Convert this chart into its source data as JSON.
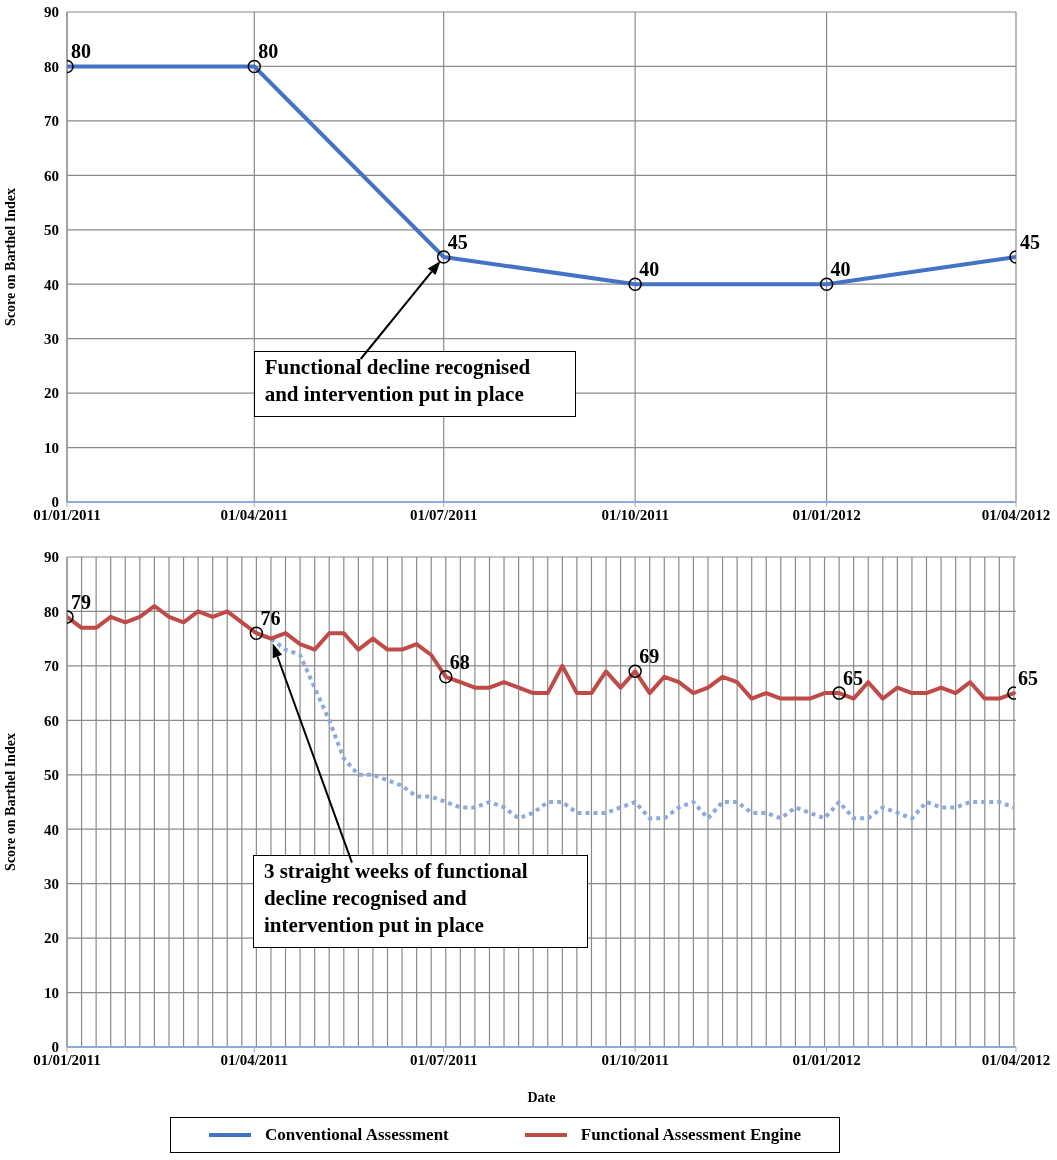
{
  "chart_data": [
    {
      "type": "line",
      "ylabel": "Score on Barthel Index",
      "x": [
        "2011-01-01",
        "2011-04-01",
        "2011-07-01",
        "2011-10-01",
        "2012-01-01",
        "2012-04-01"
      ],
      "series": [
        {
          "name": "Conventional Assessment",
          "color": "#4472c4",
          "values": [
            80,
            80,
            45,
            40,
            40,
            45
          ]
        }
      ],
      "xlim": [
        "2011-01-01",
        "2012-04-01"
      ],
      "xticks": [
        {
          "value": "2011-01-01",
          "label": "01/01/2011"
        },
        {
          "value": "2011-04-01",
          "label": "01/04/2011"
        },
        {
          "value": "2011-07-01",
          "label": "01/07/2011"
        },
        {
          "value": "2011-10-01",
          "label": "01/10/2011"
        },
        {
          "value": "2012-01-01",
          "label": "01/01/2012"
        },
        {
          "value": "2012-04-01",
          "label": "01/04/2012"
        }
      ],
      "ylim": [
        0,
        90
      ],
      "yticks": [
        0,
        10,
        20,
        30,
        40,
        50,
        60,
        70,
        80,
        90
      ],
      "grid": true,
      "marker": "circle",
      "data_labels": true,
      "annotations": [
        "Functional decline recognised and intervention put in place"
      ]
    },
    {
      "type": "line",
      "xlabel": "Date",
      "ylabel": "Score on Barthel Index",
      "x": [
        "2011-01-01",
        "2011-01-08",
        "2011-01-15",
        "2011-01-22",
        "2011-01-29",
        "2011-02-05",
        "2011-02-12",
        "2011-02-19",
        "2011-02-26",
        "2011-03-05",
        "2011-03-12",
        "2011-03-19",
        "2011-03-26",
        "2011-04-02",
        "2011-04-09",
        "2011-04-16",
        "2011-04-23",
        "2011-04-30",
        "2011-05-07",
        "2011-05-14",
        "2011-05-21",
        "2011-05-28",
        "2011-06-04",
        "2011-06-11",
        "2011-06-18",
        "2011-06-25",
        "2011-07-02",
        "2011-07-09",
        "2011-07-16",
        "2011-07-23",
        "2011-07-30",
        "2011-08-06",
        "2011-08-13",
        "2011-08-20",
        "2011-08-27",
        "2011-09-03",
        "2011-09-10",
        "2011-09-17",
        "2011-09-24",
        "2011-10-01",
        "2011-10-08",
        "2011-10-15",
        "2011-10-22",
        "2011-10-29",
        "2011-11-05",
        "2011-11-12",
        "2011-11-19",
        "2011-11-26",
        "2011-12-03",
        "2011-12-10",
        "2011-12-17",
        "2011-12-24",
        "2011-12-31",
        "2012-01-07",
        "2012-01-14",
        "2012-01-21",
        "2012-01-28",
        "2012-02-04",
        "2012-02-11",
        "2012-02-18",
        "2012-02-25",
        "2012-03-03",
        "2012-03-10",
        "2012-03-17",
        "2012-03-24",
        "2012-03-31"
      ],
      "series": [
        {
          "color": "#8eaadb",
          "line_style": "dotted",
          "values": [
            null,
            null,
            null,
            null,
            null,
            null,
            null,
            null,
            null,
            null,
            null,
            null,
            null,
            76,
            75,
            73,
            72,
            66,
            60,
            53,
            50,
            50,
            49,
            48,
            46,
            46,
            45,
            44,
            44,
            45,
            44,
            42,
            43,
            45,
            45,
            43,
            43,
            43,
            44,
            45,
            42,
            42,
            44,
            45,
            42,
            45,
            45,
            43,
            43,
            42,
            44,
            43,
            42,
            45,
            42,
            42,
            44,
            43,
            42,
            45,
            44,
            44,
            45,
            45,
            45,
            44
          ]
        },
        {
          "name": "Functional Assessment Engine",
          "color": "#be4b48",
          "values": [
            79,
            77,
            77,
            79,
            78,
            79,
            81,
            79,
            78,
            80,
            79,
            80,
            78,
            76,
            75,
            76,
            74,
            73,
            76,
            76,
            73,
            75,
            73,
            73,
            74,
            72,
            68,
            67,
            66,
            66,
            67,
            66,
            65,
            65,
            70,
            65,
            65,
            69,
            66,
            69,
            65,
            68,
            67,
            65,
            66,
            68,
            67,
            64,
            65,
            64,
            64,
            64,
            65,
            65,
            64,
            67,
            64,
            66,
            65,
            65,
            66,
            65,
            67,
            64,
            64,
            65
          ],
          "value_labels": [
            "79",
            null,
            null,
            null,
            null,
            null,
            null,
            null,
            null,
            null,
            null,
            null,
            null,
            "76",
            null,
            null,
            null,
            null,
            null,
            null,
            null,
            null,
            null,
            null,
            null,
            null,
            "68",
            null,
            null,
            null,
            null,
            null,
            null,
            null,
            null,
            null,
            null,
            null,
            null,
            "69",
            null,
            null,
            null,
            null,
            null,
            null,
            null,
            null,
            null,
            null,
            null,
            null,
            null,
            "65",
            null,
            null,
            null,
            null,
            null,
            null,
            null,
            null,
            null,
            null,
            null,
            "65"
          ]
        }
      ],
      "xlim": [
        "2011-01-01",
        "2012-04-01"
      ],
      "xticks": [
        {
          "value": "2011-01-01",
          "label": "01/01/2011"
        },
        {
          "value": "2011-04-01",
          "label": "01/04/2011"
        },
        {
          "value": "2011-07-01",
          "label": "01/07/2011"
        },
        {
          "value": "2011-10-01",
          "label": "01/10/2011"
        },
        {
          "value": "2012-01-01",
          "label": "01/01/2012"
        },
        {
          "value": "2012-04-01",
          "label": "01/04/2012"
        }
      ],
      "ylim": [
        0,
        90
      ],
      "yticks": [
        0,
        10,
        20,
        30,
        40,
        50,
        60,
        70,
        80,
        90
      ],
      "grid": true,
      "legend": "bottom",
      "annotations": [
        "3 straight weeks of functional decline recognised and intervention put in place"
      ]
    }
  ]
}
